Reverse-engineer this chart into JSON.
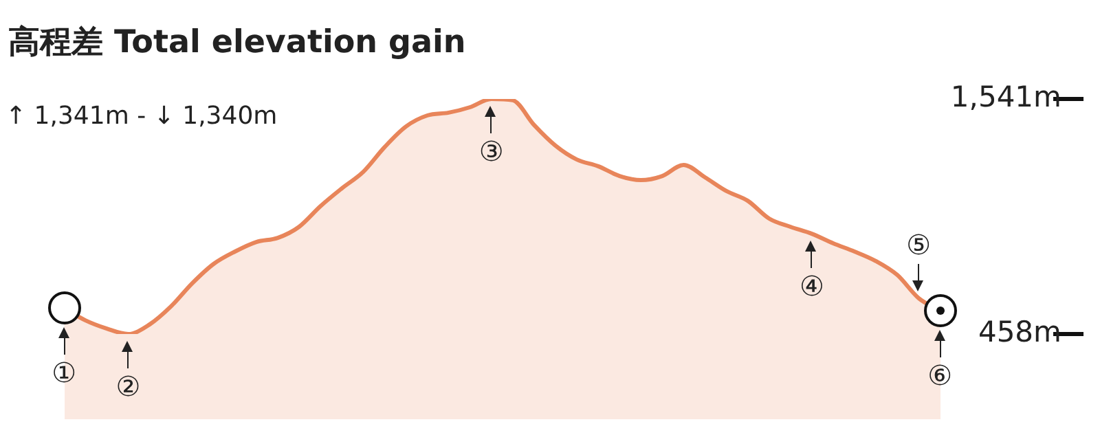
{
  "chart_data": {
    "type": "area",
    "title": "高程差  Total elevation gain",
    "subtitle": "↑ 1,341m  -  ↓ 1,340m",
    "categories": [
      null,
      null,
      null,
      null,
      null,
      null,
      null,
      null,
      null,
      null,
      null,
      null,
      null,
      null,
      null,
      null,
      null,
      null,
      null,
      null,
      null,
      null,
      null,
      null,
      null,
      null,
      null,
      null,
      null,
      null,
      null,
      null,
      null,
      null,
      null,
      null,
      null,
      null,
      null,
      null,
      null,
      null
    ],
    "series": [
      {
        "color": "#e8855a",
        "values": [
          578,
          521,
          483,
          458,
          502,
          585,
          692,
          781,
          838,
          882,
          901,
          952,
          1047,
          1129,
          1205,
          1319,
          1414,
          1465,
          1478,
          1503,
          1541,
          1535,
          1421,
          1326,
          1262,
          1231,
          1186,
          1167,
          1186,
          1237,
          1180,
          1117,
          1072,
          990,
          952,
          920,
          876,
          838,
          794,
          730,
          623,
          566
        ]
      }
    ],
    "ylim": [
      458,
      1541
    ],
    "yticks": [
      {
        "value": 458,
        "label": "458m"
      },
      {
        "value": 1541,
        "label": "1,541m"
      }
    ],
    "tick_labels": "y",
    "annotations": [
      {
        "text": "①",
        "y": 578
      },
      {
        "text": "②",
        "y": 458
      },
      {
        "text": "③",
        "y": 1541
      },
      {
        "text": "④",
        "y": 920
      },
      {
        "text": "⑤",
        "y": 623
      },
      {
        "text": "⑥",
        "y": 566
      }
    ]
  }
}
